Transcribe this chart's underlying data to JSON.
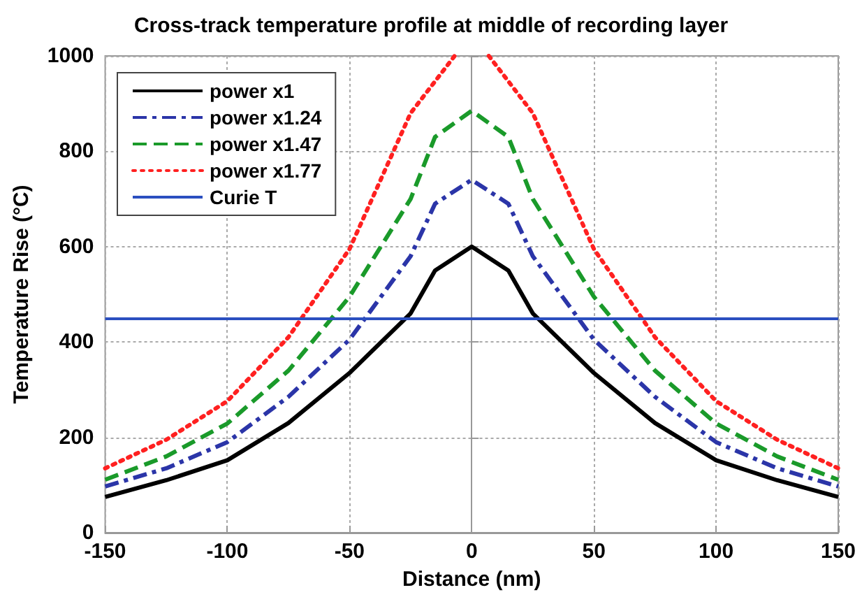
{
  "chart_data": {
    "type": "line",
    "title": "Cross-track temperature profile at middle of recording layer",
    "xlabel": "Distance (nm)",
    "ylabel": "Temperature Rise (°C)",
    "x": [
      -150,
      -125,
      -100,
      -75,
      -50,
      -25,
      -15,
      0,
      15,
      25,
      50,
      75,
      100,
      125,
      150
    ],
    "series": [
      {
        "name": "power x1",
        "color": "#000000",
        "line_style": "solid",
        "values": [
          75,
          110,
          152,
          230,
          335,
          460,
          550,
          600,
          550,
          460,
          335,
          230,
          152,
          110,
          75
        ]
      },
      {
        "name": "power x1.24",
        "color": "#2b35a8",
        "line_style": "dashdot",
        "values": [
          97,
          135,
          190,
          285,
          405,
          580,
          690,
          740,
          690,
          580,
          405,
          285,
          190,
          135,
          97
        ]
      },
      {
        "name": "power x1.47",
        "color": "#1a9a2a",
        "line_style": "dashed",
        "values": [
          111,
          160,
          229,
          340,
          495,
          700,
          830,
          885,
          830,
          700,
          495,
          340,
          229,
          160,
          111
        ]
      },
      {
        "name": "power x1.77",
        "color": "#ff2020",
        "line_style": "dotted",
        "x": [
          -150,
          -125,
          -100,
          -75,
          -50,
          -25,
          -7,
          0,
          7,
          25,
          50,
          75,
          100,
          125,
          150
        ],
        "values": [
          135,
          195,
          276,
          410,
          595,
          880,
          1000,
          null,
          1000,
          880,
          595,
          410,
          276,
          195,
          135
        ]
      }
    ],
    "ref_lines": [
      {
        "axis": "y",
        "value": 450,
        "label": "Curie T",
        "color": "#2b4fc0",
        "line_style": "solid"
      }
    ],
    "xlim": [
      -150,
      150
    ],
    "xticks": [
      -150,
      -100,
      -50,
      0,
      50,
      100,
      150
    ],
    "ylim": [
      0,
      1000
    ],
    "yticks": [
      0,
      200,
      400,
      600,
      800,
      1000
    ],
    "grid": true,
    "legend": "top left"
  }
}
